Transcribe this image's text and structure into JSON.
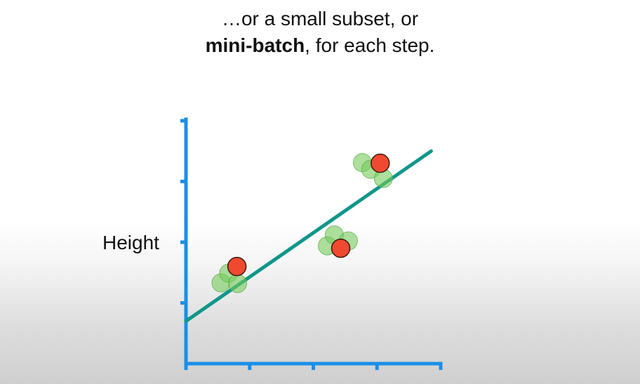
{
  "caption": {
    "line1": "…or a small subset, or",
    "line2_bold": "mini-batch",
    "line2_rest": ", for each step."
  },
  "colors": {
    "axis": "#1a8fe8",
    "fit_line": "#10968a",
    "point_green": "#74cc5a",
    "point_red": "#ef4a30"
  },
  "chart_data": {
    "type": "scatter",
    "title": "",
    "xlabel": "",
    "ylabel": "Height",
    "xlim": [
      0,
      4
    ],
    "ylim": [
      0,
      4
    ],
    "x_ticks": [
      0,
      1,
      2,
      3,
      4
    ],
    "y_ticks": [
      0,
      1,
      2,
      3,
      4
    ],
    "tick_labels_shown": false,
    "grid": false,
    "fit_line": {
      "x": [
        0,
        3.85
      ],
      "y": [
        0.7,
        3.5
      ]
    },
    "series": [
      {
        "role": "all data",
        "color": "green",
        "points": [
          [
            0.55,
            1.33
          ],
          [
            0.67,
            1.49
          ],
          [
            0.81,
            1.32
          ],
          [
            2.22,
            1.94
          ],
          [
            2.33,
            2.12
          ],
          [
            2.55,
            2.02
          ],
          [
            2.77,
            3.31
          ],
          [
            2.9,
            3.2
          ],
          [
            3.1,
            3.05
          ]
        ]
      },
      {
        "role": "mini-batch",
        "color": "red",
        "points": [
          [
            0.8,
            1.6
          ],
          [
            2.43,
            1.9
          ],
          [
            3.05,
            3.3
          ]
        ]
      }
    ]
  }
}
